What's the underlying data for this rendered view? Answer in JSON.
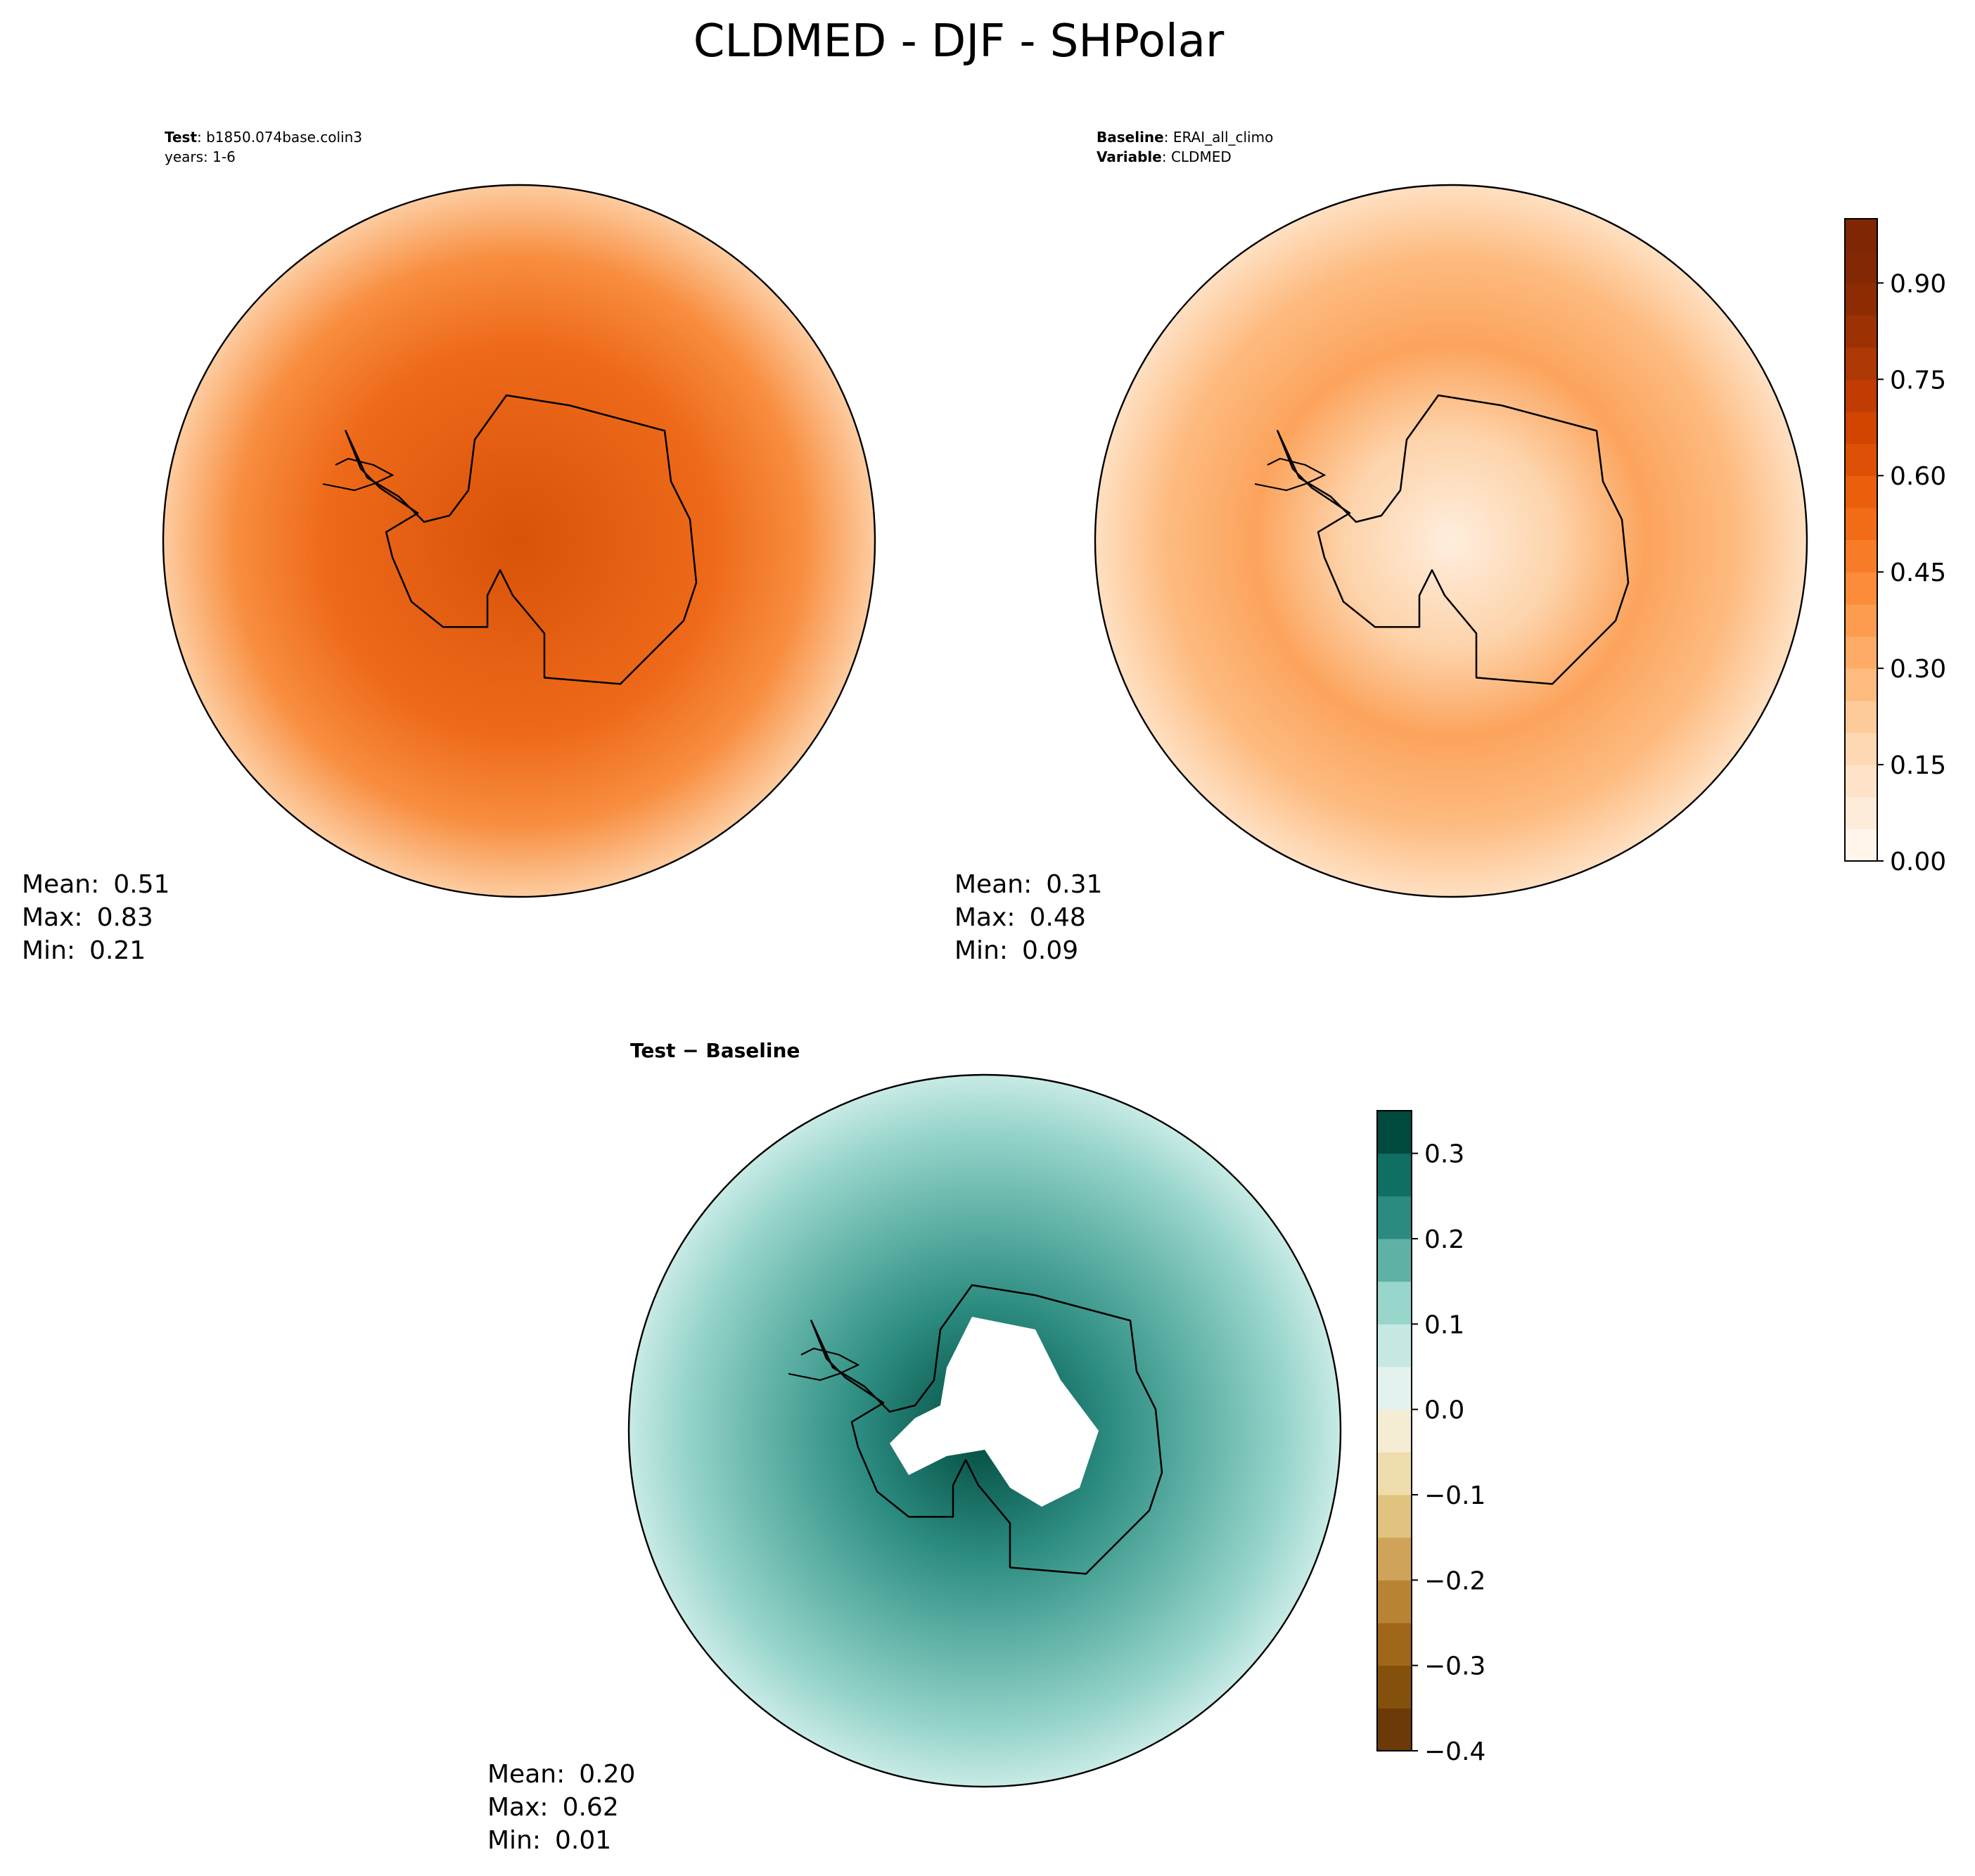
{
  "title": "CLDMED - DJF - SHPolar",
  "chart_data": [
    {
      "type": "map",
      "caption": [
        [
          {
            "text": "Test",
            "bold": true
          },
          {
            "text": ": b1850.074base.colin3"
          }
        ],
        [
          {
            "text": "years: 1-6"
          }
        ]
      ],
      "stats": {
        "labels": [
          "Mean:",
          "Max:",
          "Min:"
        ],
        "values": [
          0.51,
          0.83,
          0.21
        ]
      }
    },
    {
      "type": "map",
      "caption": [
        [
          {
            "text": "Baseline",
            "bold": true
          },
          {
            "text": ": ERAI_all_climo"
          }
        ],
        [
          {
            "text": "Variable",
            "bold": true
          },
          {
            "text": ": CLDMED"
          }
        ]
      ],
      "stats": {
        "labels": [
          "Mean:",
          "Max:",
          "Min:"
        ],
        "values": [
          0.31,
          0.48,
          0.09
        ]
      },
      "colorbar": {
        "ylim": [
          0,
          1
        ],
        "yticks": [
          {
            "value": 0,
            "label": "0.00"
          },
          0.15,
          {
            "value": 0.3,
            "label": "0.30"
          },
          0.45,
          {
            "value": 0.6,
            "label": "0.60"
          },
          0.75,
          {
            "value": 0.9,
            "label": "0.90"
          }
        ],
        "colors": [
          "#fff5eb",
          "#feecda",
          "#fee3c8",
          "#fdd8b3",
          "#fdca99",
          "#fdbb7f",
          "#fdab66",
          "#fd9b4f",
          "#fc8b3a",
          "#f87c28",
          "#f26c17",
          "#eb5f0c",
          "#de5005",
          "#d14501",
          "#c03c02",
          "#ad3803",
          "#9c3203",
          "#8d2c03",
          "#822804",
          "#7f2704"
        ]
      }
    },
    {
      "type": "map",
      "caption": [
        [
          {
            "text": "Test − Baseline",
            "bold": true
          }
        ]
      ],
      "stats": {
        "labels": [
          "Mean:",
          "Max:",
          "Min:"
        ],
        "values": [
          0.2,
          0.62,
          0.01
        ],
        "value_labels": [
          "0.20",
          "0.62",
          "0.01"
        ]
      },
      "colorbar": {
        "ylim": [
          -0.4,
          0.35
        ],
        "yticks": [
          {
            "value": -0.4,
            "label": "−0.4"
          },
          {
            "value": -0.3,
            "label": "−0.3"
          },
          {
            "value": -0.2,
            "label": "−0.2"
          },
          {
            "value": -0.1,
            "label": "−0.1"
          },
          {
            "value": 0,
            "label": "0.0"
          },
          0.1,
          0.2,
          0.3
        ],
        "colors": [
          "#6b3a08",
          "#84510d",
          "#a0661a",
          "#b88433",
          "#cfa35a",
          "#e0c37e",
          "#efdcac",
          "#f4edd3",
          "#e3f2ef",
          "#c6e8e3",
          "#98d5cb",
          "#5fb1a6",
          "#2c8b80",
          "#0f6f63",
          "#00493d"
        ]
      }
    }
  ]
}
